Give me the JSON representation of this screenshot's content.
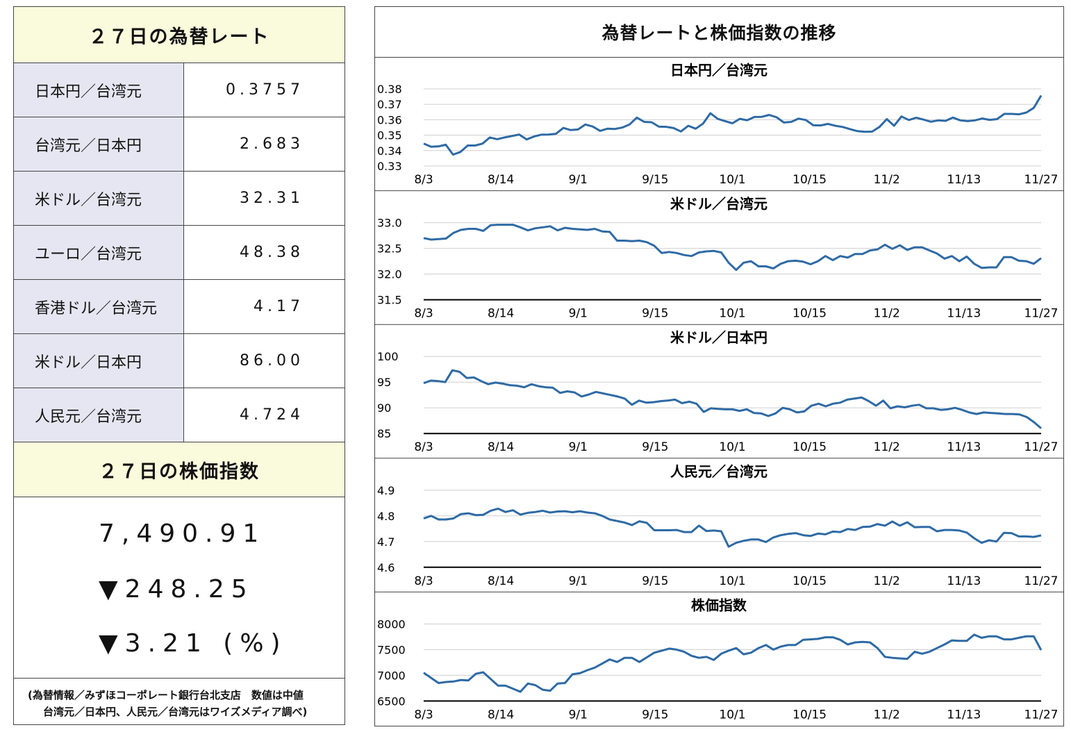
{
  "left": {
    "rates_title": "２７日の為替レート",
    "rates": [
      {
        "name": "日本円／台湾元",
        "value": "0.3757"
      },
      {
        "name": "台湾元／日本円",
        "value": "2.683"
      },
      {
        "name": "米ドル／台湾元",
        "value": "32.31"
      },
      {
        "name": "ユーロ／台湾元",
        "value": "48.38"
      },
      {
        "name": "香港ドル／台湾元",
        "value": "4.17"
      },
      {
        "name": "米ドル／日本円",
        "value": "86.00"
      },
      {
        "name": "人民元／台湾元",
        "value": "4.724"
      }
    ],
    "stock_title": "２７日の株価指数",
    "stock_value": "7,490.91",
    "stock_change": "▼248.25",
    "stock_pct": "▼3.21 (%)",
    "note_line1": "(為替情報／みずほコーポレート銀行台北支店　数値は中値",
    "note_line2": "台湾元／日本円、人民元／台湾元はワイズメディア調べ)"
  },
  "right": {
    "title": "為替レートと株価指数の推移",
    "line_color": "#2e6aa5"
  },
  "chart_data": [
    {
      "type": "line",
      "title": "日本円／台湾元",
      "ylim": [
        0.33,
        0.38
      ],
      "yticks": [
        "0.38",
        "0.37",
        "0.36",
        "0.35",
        "0.34",
        "0.33"
      ],
      "xticks": [
        "8/3",
        "8/14",
        "9/1",
        "9/15",
        "10/1",
        "10/15",
        "11/2",
        "11/13",
        "11/27"
      ],
      "baseline": false,
      "values": [
        0.3445,
        0.3425,
        0.3427,
        0.3438,
        0.3374,
        0.3391,
        0.3433,
        0.3433,
        0.3445,
        0.3485,
        0.3474,
        0.3485,
        0.3494,
        0.3504,
        0.3472,
        0.3491,
        0.3503,
        0.3504,
        0.3509,
        0.3547,
        0.3533,
        0.3537,
        0.3569,
        0.3556,
        0.3528,
        0.3542,
        0.354,
        0.3549,
        0.3569,
        0.3614,
        0.3586,
        0.3584,
        0.3555,
        0.3554,
        0.3546,
        0.3524,
        0.3561,
        0.3542,
        0.3575,
        0.3642,
        0.3606,
        0.3591,
        0.3577,
        0.3606,
        0.3597,
        0.3618,
        0.3619,
        0.3631,
        0.3616,
        0.3582,
        0.3586,
        0.3607,
        0.3598,
        0.3564,
        0.3563,
        0.3573,
        0.3561,
        0.3553,
        0.3539,
        0.3526,
        0.3522,
        0.3523,
        0.3553,
        0.3604,
        0.3561,
        0.3621,
        0.3598,
        0.3613,
        0.3601,
        0.3587,
        0.3596,
        0.3593,
        0.3614,
        0.3596,
        0.3591,
        0.3596,
        0.3608,
        0.3599,
        0.3604,
        0.3638,
        0.3638,
        0.3635,
        0.3647,
        0.3677,
        0.3757
      ]
    },
    {
      "type": "line",
      "title": "米ドル／台湾元",
      "ylim": [
        31.5,
        33.0
      ],
      "yticks": [
        "33.0",
        "32.5",
        "32.0",
        "31.5"
      ],
      "xticks": [
        "8/3",
        "8/14",
        "9/1",
        "9/15",
        "10/1",
        "10/15",
        "11/2",
        "11/13",
        "11/27"
      ],
      "baseline": true,
      "values": [
        32.7,
        32.67,
        32.68,
        32.69,
        32.8,
        32.86,
        32.88,
        32.88,
        32.84,
        32.95,
        32.96,
        32.96,
        32.96,
        32.91,
        32.85,
        32.89,
        32.91,
        32.93,
        32.85,
        32.9,
        32.88,
        32.87,
        32.86,
        32.88,
        32.83,
        32.82,
        32.65,
        32.65,
        32.64,
        32.65,
        32.62,
        32.55,
        32.41,
        32.43,
        32.41,
        32.37,
        32.35,
        32.42,
        32.44,
        32.45,
        32.42,
        32.22,
        32.08,
        32.22,
        32.25,
        32.15,
        32.15,
        32.11,
        32.2,
        32.25,
        32.26,
        32.24,
        32.19,
        32.25,
        32.35,
        32.27,
        32.35,
        32.32,
        32.39,
        32.39,
        32.46,
        32.48,
        32.57,
        32.49,
        32.56,
        32.47,
        32.52,
        32.52,
        32.46,
        32.4,
        32.3,
        32.35,
        32.25,
        32.34,
        32.2,
        32.12,
        32.13,
        32.13,
        32.33,
        32.33,
        32.26,
        32.25,
        32.2,
        32.31
      ]
    },
    {
      "type": "line",
      "title": "米ドル／日本円",
      "ylim": [
        85,
        100
      ],
      "yticks": [
        "100",
        "95",
        "90",
        "85"
      ],
      "xticks": [
        "8/3",
        "8/14",
        "9/1",
        "9/15",
        "10/1",
        "10/15",
        "11/2",
        "11/13",
        "11/27"
      ],
      "baseline": true,
      "values": [
        94.8,
        95.3,
        95.2,
        95.0,
        97.3,
        97.0,
        95.8,
        95.9,
        95.2,
        94.6,
        94.9,
        94.7,
        94.4,
        94.3,
        94.0,
        94.6,
        94.2,
        94.0,
        93.9,
        92.9,
        93.2,
        93.0,
        92.2,
        92.6,
        93.1,
        92.8,
        92.5,
        92.2,
        91.8,
        90.6,
        91.4,
        91.0,
        91.1,
        91.3,
        91.4,
        91.6,
        90.9,
        91.2,
        90.8,
        89.2,
        89.9,
        89.8,
        89.7,
        89.7,
        89.4,
        89.7,
        89.0,
        88.9,
        88.4,
        88.9,
        90.0,
        89.7,
        89.1,
        89.3,
        90.4,
        90.8,
        90.3,
        90.8,
        91.0,
        91.6,
        91.8,
        92.0,
        91.3,
        90.4,
        91.4,
        89.9,
        90.3,
        90.1,
        90.4,
        90.6,
        89.9,
        89.9,
        89.6,
        89.7,
        90.0,
        89.6,
        89.1,
        88.8,
        89.1,
        89.0,
        88.9,
        88.8,
        88.8,
        88.7,
        88.2,
        87.2,
        86.0
      ]
    },
    {
      "type": "line",
      "title": "人民元／台湾元",
      "ylim": [
        4.6,
        4.9
      ],
      "yticks": [
        "4.9",
        "4.8",
        "4.7",
        "4.6"
      ],
      "xticks": [
        "8/3",
        "8/14",
        "9/1",
        "9/15",
        "10/1",
        "10/15",
        "11/2",
        "11/13",
        "11/27"
      ],
      "baseline": true,
      "values": [
        4.79,
        4.8,
        4.786,
        4.786,
        4.79,
        4.807,
        4.81,
        4.803,
        4.804,
        4.82,
        4.828,
        4.815,
        4.822,
        4.805,
        4.812,
        4.815,
        4.82,
        4.813,
        4.817,
        4.818,
        4.814,
        4.818,
        4.813,
        4.81,
        4.8,
        4.786,
        4.78,
        4.774,
        4.764,
        4.779,
        4.773,
        4.744,
        4.744,
        4.744,
        4.745,
        4.737,
        4.737,
        4.762,
        4.741,
        4.743,
        4.74,
        4.68,
        4.695,
        4.703,
        4.708,
        4.708,
        4.698,
        4.716,
        4.725,
        4.73,
        4.733,
        4.725,
        4.722,
        4.731,
        4.728,
        4.739,
        4.737,
        4.749,
        4.745,
        4.757,
        4.758,
        4.768,
        4.762,
        4.778,
        4.762,
        4.775,
        4.756,
        4.757,
        4.757,
        4.74,
        4.745,
        4.745,
        4.743,
        4.735,
        4.713,
        4.695,
        4.705,
        4.7,
        4.734,
        4.733,
        4.72,
        4.72,
        4.718,
        4.724
      ]
    },
    {
      "type": "line",
      "title": "株価指数",
      "ylim": [
        6500,
        8000
      ],
      "yticks": [
        "8000",
        "7500",
        "7000",
        "6500"
      ],
      "xticks": [
        "8/3",
        "8/14",
        "9/1",
        "9/15",
        "10/1",
        "10/15",
        "11/2",
        "11/13",
        "11/27"
      ],
      "baseline": true,
      "values": [
        7050,
        6950,
        6850,
        6870,
        6880,
        6910,
        6900,
        7030,
        7060,
        6930,
        6800,
        6800,
        6740,
        6680,
        6840,
        6810,
        6720,
        6700,
        6840,
        6850,
        7020,
        7040,
        7100,
        7150,
        7230,
        7310,
        7260,
        7340,
        7340,
        7260,
        7350,
        7440,
        7480,
        7520,
        7500,
        7460,
        7380,
        7340,
        7360,
        7300,
        7420,
        7480,
        7530,
        7410,
        7440,
        7530,
        7590,
        7500,
        7560,
        7590,
        7590,
        7690,
        7700,
        7710,
        7740,
        7740,
        7690,
        7600,
        7640,
        7650,
        7640,
        7530,
        7360,
        7340,
        7330,
        7320,
        7460,
        7420,
        7460,
        7530,
        7600,
        7680,
        7670,
        7670,
        7790,
        7730,
        7760,
        7760,
        7700,
        7700,
        7730,
        7760,
        7760,
        7490
      ]
    }
  ]
}
